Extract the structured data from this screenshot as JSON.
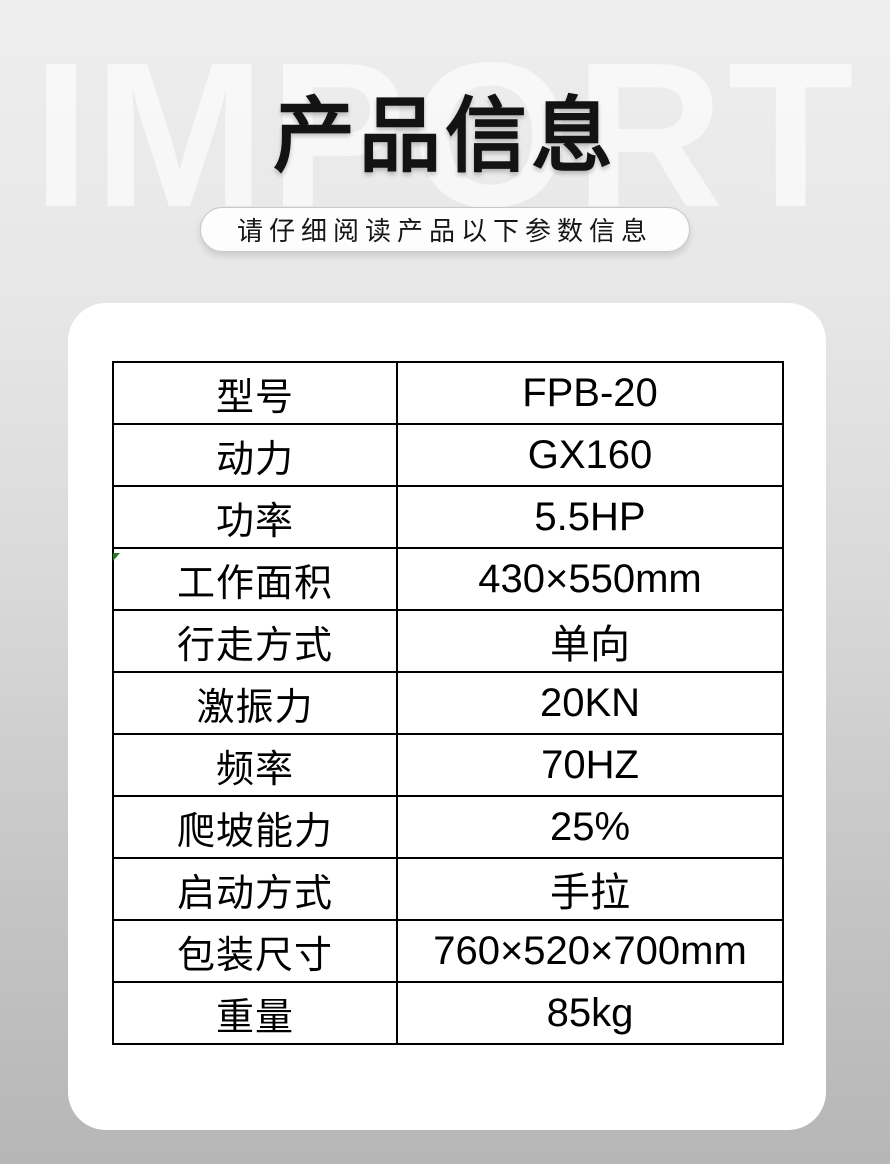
{
  "header": {
    "watermark": "IMPORT",
    "title": "产品信息",
    "subtitle": "请仔细阅读产品以下参数信息"
  },
  "colors": {
    "background_top": "#eeeeee",
    "background_bottom": "#b6b6b6",
    "watermark_text": "#f2f2f2",
    "title_text": "#131313",
    "card_background": "#ffffff",
    "table_border": "#000000",
    "green_corner_mark": "#1e7a1f"
  },
  "specs": {
    "rows": [
      {
        "label": "型号",
        "value": "FPB-20"
      },
      {
        "label": "动力",
        "value": "GX160"
      },
      {
        "label": "功率",
        "value": "5.5HP"
      },
      {
        "label": "工作面积",
        "value": "430×550mm"
      },
      {
        "label": "行走方式",
        "value": "单向"
      },
      {
        "label": "激振力",
        "value": "20KN"
      },
      {
        "label": "频率",
        "value": "70HZ"
      },
      {
        "label": "爬坡能力",
        "value": "25%"
      },
      {
        "label": "启动方式",
        "value": "手拉"
      },
      {
        "label": "包装尺寸",
        "value": "760×520×700mm"
      },
      {
        "label": "重量",
        "value": "85kg"
      }
    ]
  }
}
